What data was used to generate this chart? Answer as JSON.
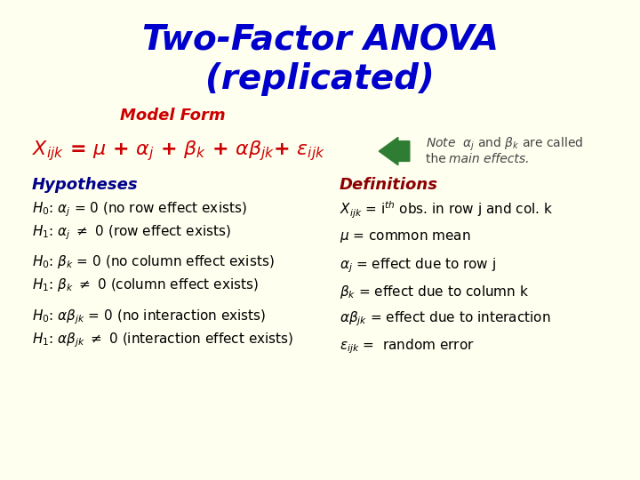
{
  "bg_color": "#FFFFF0",
  "title_line1": "Two-Factor ANOVA",
  "title_line2": "(replicated)",
  "title_color": "#0000CC",
  "title_fontsize": 28,
  "model_form_label": "Model Form",
  "model_form_color": "#CC0000",
  "model_form_fontsize": 13,
  "equation_color": "#CC0000",
  "equation_fontsize": 16,
  "note_color": "#444444",
  "note_fontsize": 10,
  "arrow_color": "#2E7D32",
  "hypotheses_color": "#00008B",
  "hypotheses_fontsize": 13,
  "definitions_color": "#8B0000",
  "definitions_fontsize": 13,
  "body_color": "#000000",
  "body_fontsize": 11
}
